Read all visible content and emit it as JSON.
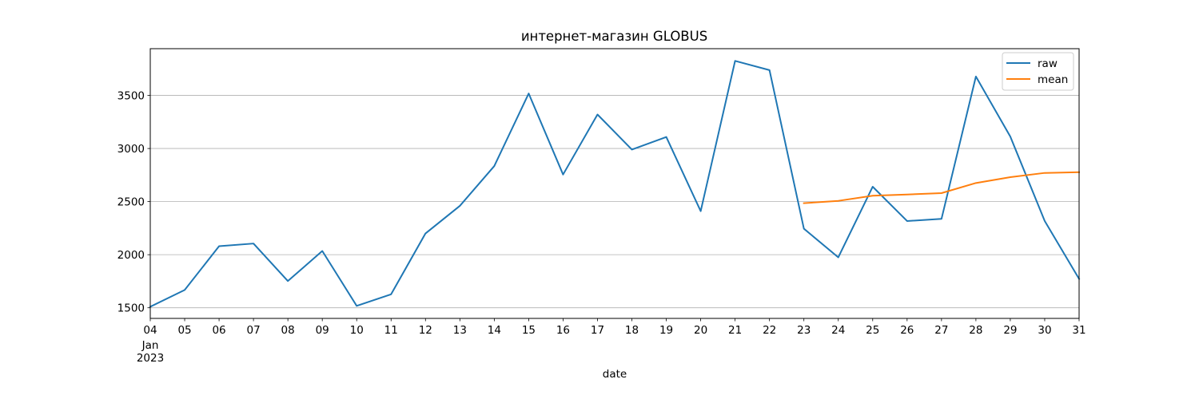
{
  "chart_data": {
    "type": "line",
    "title": "интернет-магазин GLOBUS",
    "xlabel": "date",
    "ylabel": "",
    "x": [
      "2023-01-04",
      "2023-01-05",
      "2023-01-06",
      "2023-01-07",
      "2023-01-08",
      "2023-01-09",
      "2023-01-10",
      "2023-01-11",
      "2023-01-12",
      "2023-01-13",
      "2023-01-14",
      "2023-01-15",
      "2023-01-16",
      "2023-01-17",
      "2023-01-18",
      "2023-01-19",
      "2023-01-20",
      "2023-01-21",
      "2023-01-22",
      "2023-01-23",
      "2023-01-24",
      "2023-01-25",
      "2023-01-26",
      "2023-01-27",
      "2023-01-28",
      "2023-01-29",
      "2023-01-30",
      "2023-01-31"
    ],
    "x_tick_labels": [
      "04",
      "05",
      "06",
      "07",
      "08",
      "09",
      "10",
      "11",
      "12",
      "13",
      "14",
      "15",
      "16",
      "17",
      "18",
      "19",
      "20",
      "21",
      "22",
      "23",
      "24",
      "25",
      "26",
      "27",
      "28",
      "29",
      "30",
      "31"
    ],
    "x_tick_sublabels": [
      "Jan",
      "2023"
    ],
    "ylim": [
      1400,
      3940
    ],
    "y_ticks": [
      1500,
      2000,
      2500,
      3000,
      3500
    ],
    "grid": "y",
    "legend_position": "top-right",
    "series": [
      {
        "name": "raw",
        "color": "#1f77b4",
        "values": [
          1510,
          1668,
          2080,
          2105,
          1752,
          2035,
          1518,
          1627,
          2200,
          2460,
          2835,
          3518,
          2755,
          3320,
          2990,
          3108,
          2410,
          3825,
          3738,
          2245,
          1975,
          2640,
          2317,
          2337,
          3678,
          3112,
          2318,
          1772
        ]
      },
      {
        "name": "mean",
        "color": "#ff7f0e",
        "values": [
          null,
          null,
          null,
          null,
          null,
          null,
          null,
          null,
          null,
          null,
          null,
          null,
          null,
          null,
          null,
          null,
          null,
          null,
          null,
          2485,
          2507,
          2555,
          2567,
          2580,
          2675,
          2730,
          2770,
          2777
        ]
      }
    ]
  }
}
